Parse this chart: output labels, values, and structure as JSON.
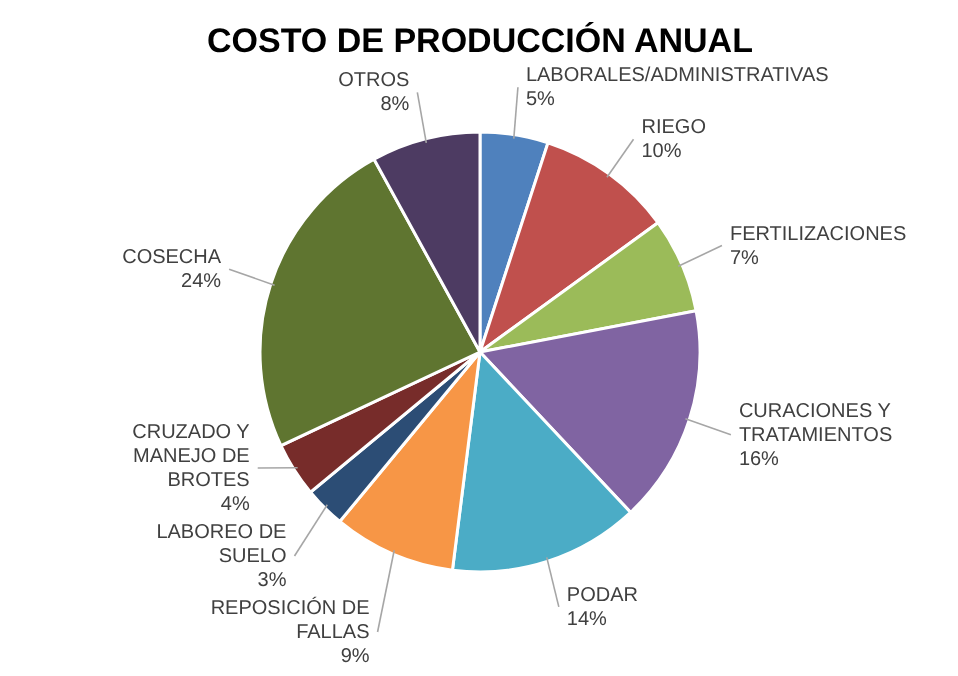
{
  "chart_data": {
    "type": "pie",
    "title": "COSTO DE PRODUCCIÓN ANUAL",
    "categories": [
      "LABORALES/ADMINISTRATIVAS",
      "RIEGO",
      "FERTILIZACIONES",
      "CURACIONES Y TRATAMIENTOS",
      "PODAR",
      "REPOSICIÓN DE FALLAS",
      "LABOREO DE SUELO",
      "CRUZADO Y MANEJO DE BROTES",
      "COSECHA",
      "OTROS"
    ],
    "values": [
      5,
      10,
      7,
      16,
      14,
      9,
      3,
      4,
      24,
      8
    ],
    "value_labels": [
      "5%",
      "10%",
      "7%",
      "16%",
      "14%",
      "9%",
      "3%",
      "4%",
      "24%",
      "8%"
    ],
    "colors": [
      "#4f81bd",
      "#c0504d",
      "#9bbb59",
      "#8064a2",
      "#4bacc6",
      "#f79646",
      "#2c4d75",
      "#772c2a",
      "#5f7530",
      "#4d3b62"
    ]
  }
}
